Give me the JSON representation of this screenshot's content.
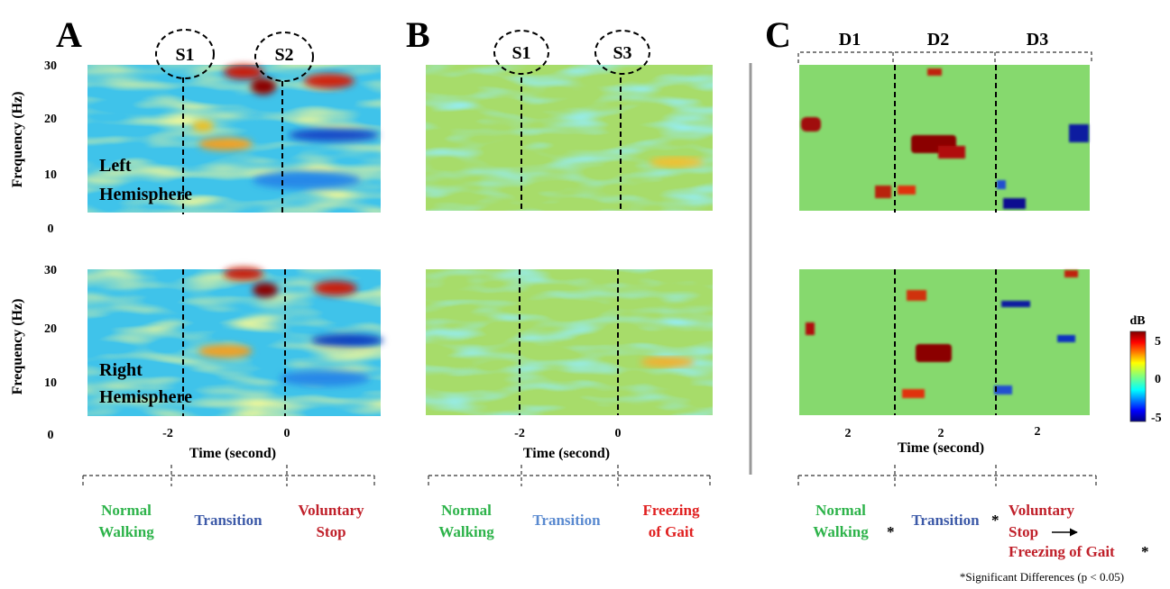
{
  "panels": [
    {
      "letter": "A",
      "markers": [
        "S1",
        "S2"
      ],
      "plots": [
        {
          "y_axis_label": "Frequency (Hz)",
          "yticks": [
            "30",
            "20",
            "10",
            "0"
          ],
          "hemisphere": [
            "Left",
            "Hemisphere"
          ]
        },
        {
          "y_axis_label": "Frequency (Hz)",
          "yticks": [
            "30",
            "20",
            "10",
            "0"
          ],
          "hemisphere": [
            "Right",
            "Hemisphere"
          ]
        }
      ],
      "xticks": [
        "-2",
        "0"
      ],
      "x_axis_label": "Time (second)",
      "phases": [
        {
          "lines": [
            "Normal",
            "Walking"
          ]
        },
        {
          "lines": [
            "Transition"
          ]
        },
        {
          "lines": [
            "Voluntary",
            "Stop"
          ]
        }
      ]
    },
    {
      "letter": "B",
      "markers": [
        "S1",
        "S3"
      ],
      "xticks": [
        "-2",
        "0"
      ],
      "x_axis_label": "Time (second)",
      "phases": [
        {
          "lines": [
            "Normal",
            "Walking"
          ]
        },
        {
          "lines": [
            "Transition"
          ]
        },
        {
          "lines": [
            "Freezing",
            "of Gait"
          ]
        }
      ]
    },
    {
      "letter": "C",
      "segments": [
        "D1",
        "D2",
        "D3"
      ],
      "xticks": [
        "2",
        "2",
        "2"
      ],
      "x_axis_label": "Time (second)",
      "phases": [
        {
          "lines": [
            "Normal",
            "Walking"
          ],
          "note": "*"
        },
        {
          "lines": [
            "Transition"
          ],
          "note": "*"
        },
        {
          "lines": [
            "Voluntary",
            "Stop",
            "Freezing of Gait"
          ],
          "note": "*"
        }
      ],
      "colorbar": {
        "label": "dB",
        "ticks": [
          "5",
          "0",
          "-5"
        ]
      },
      "footnote": "*Significant Differences (p < 0.05)"
    }
  ]
}
